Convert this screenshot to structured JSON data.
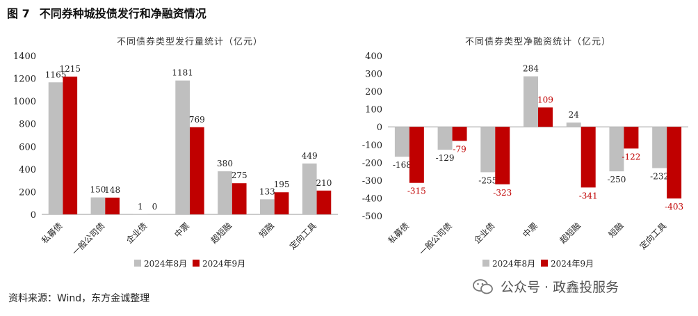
{
  "figure": {
    "number": "图 7",
    "title": "不同券种城投债发行和净融资情况"
  },
  "source_note": "资料来源：Wind，东方金诚整理",
  "watermark": "公众号 · 政鑫投服务",
  "chart_data": [
    {
      "type": "bar",
      "title": "不同债券类型发行量统计（亿元）",
      "categories": [
        "私募债",
        "一般公司债",
        "企业债",
        "中票",
        "超短融",
        "短融",
        "定向工具"
      ],
      "series": [
        {
          "name": "2024年8月",
          "values": [
            1165,
            150,
            1,
            1181,
            380,
            133,
            449
          ],
          "color": "#bfbfbf"
        },
        {
          "name": "2024年9月",
          "values": [
            1215,
            148,
            0,
            769,
            275,
            195,
            210
          ],
          "color": "#c00000"
        }
      ],
      "ylim": [
        0,
        1400
      ],
      "yticks": [
        0,
        200,
        400,
        600,
        800,
        1000,
        1200,
        1400
      ],
      "xlabel": "",
      "ylabel": "",
      "grid": false,
      "legend_position": "bottom"
    },
    {
      "type": "bar",
      "title": "不同债券类型净融资统计（亿元）",
      "categories": [
        "私募债",
        "一般公司债",
        "企业债",
        "中票",
        "超短融",
        "短融",
        "定向工具"
      ],
      "series": [
        {
          "name": "2024年8月",
          "values": [
            -168,
            -129,
            -255,
            284,
            24,
            -250,
            -232
          ],
          "color": "#bfbfbf"
        },
        {
          "name": "2024年9月",
          "values": [
            -315,
            -79,
            -323,
            109,
            -341,
            -122,
            -403
          ],
          "color": "#c00000"
        }
      ],
      "ylim": [
        -500,
        400
      ],
      "yticks": [
        -500,
        -400,
        -300,
        -200,
        -100,
        0,
        100,
        200,
        300,
        400
      ],
      "xlabel": "",
      "ylabel": "",
      "grid": false,
      "legend_position": "bottom"
    }
  ]
}
